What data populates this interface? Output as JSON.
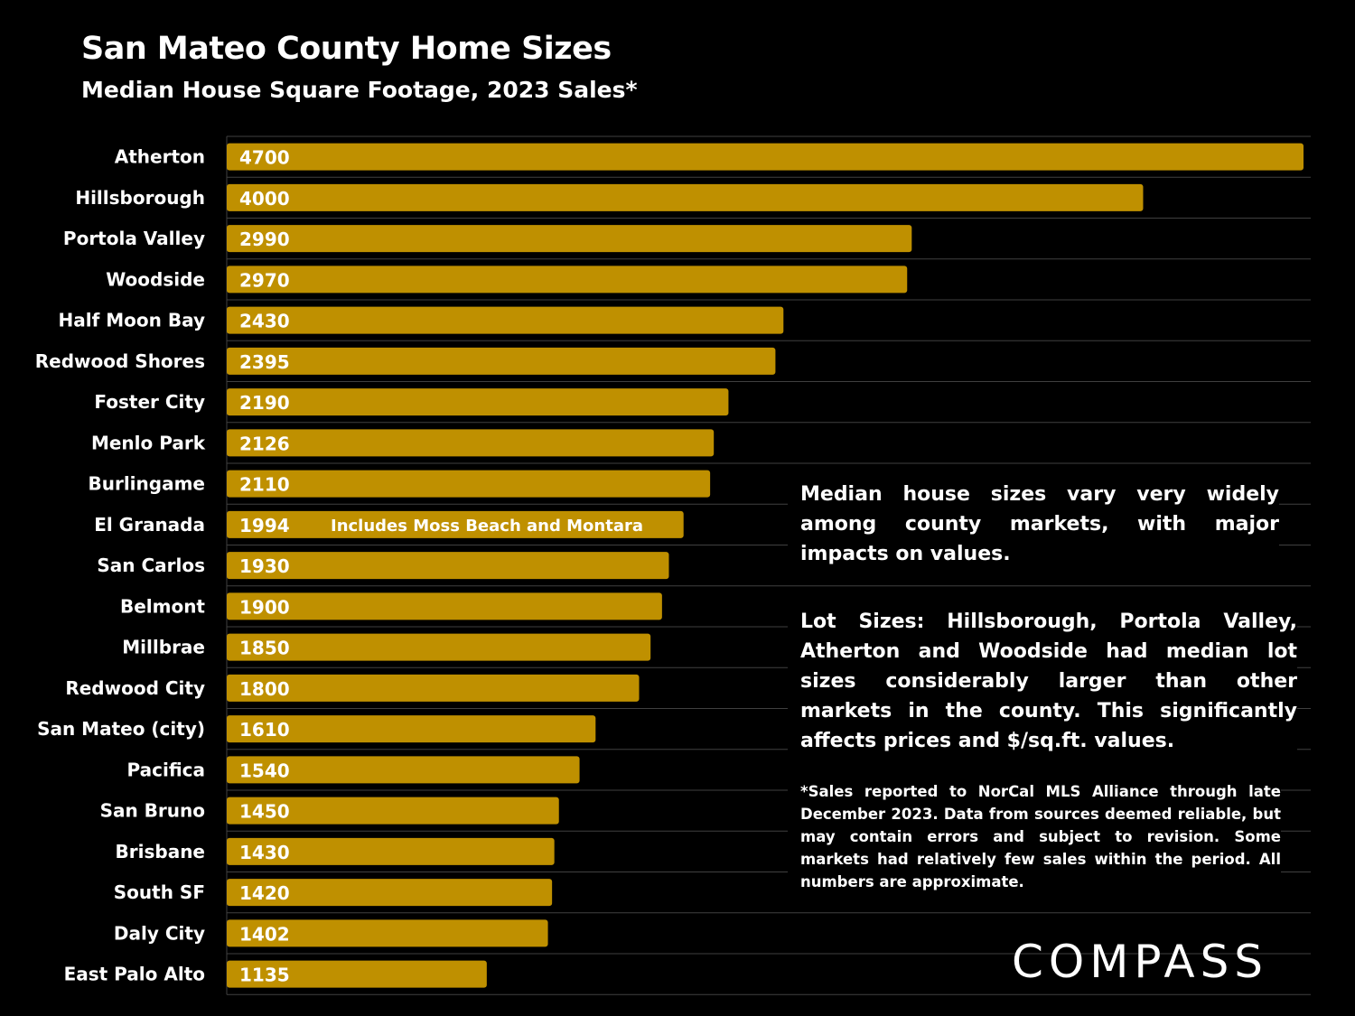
{
  "chart_data": {
    "type": "bar",
    "orientation": "horizontal",
    "title": "San Mateo County Home Sizes",
    "subtitle": "Median House Square Footage, 2023 Sales*",
    "categories": [
      "Atherton",
      "Hillsborough",
      "Portola Valley",
      "Woodside",
      "Half Moon Bay",
      "Redwood Shores",
      "Foster City",
      "Menlo Park",
      "Burlingame",
      "El Granada",
      "San Carlos",
      "Belmont",
      "Millbrae",
      "Redwood City",
      "San Mateo (city)",
      "Pacifica",
      "San Bruno",
      "Brisbane",
      "South SF",
      "Daly City",
      "East Palo Alto"
    ],
    "values": [
      4700,
      4000,
      2990,
      2970,
      2430,
      2395,
      2190,
      2126,
      2110,
      1994,
      1930,
      1900,
      1850,
      1800,
      1610,
      1540,
      1450,
      1430,
      1420,
      1402,
      1135
    ],
    "xlim": [
      0,
      4700
    ],
    "bar_color": "#bf9000",
    "gridline_color": "#404040",
    "annotations": [
      {
        "category": "El Granada",
        "text": "Includes Moss Beach and Montara"
      }
    ]
  },
  "notes": {
    "main": "Median house sizes vary very widely among county markets, with major impacts on values.",
    "lot": "Lot Sizes: Hillsborough, Portola Valley, Atherton and Woodside had median lot sizes considerably larger than other markets in the county. This significantly affects prices and $/sq.ft. values.",
    "footnote": "*Sales reported to NorCal MLS Alliance through late December 2023. Data from sources deemed reliable, but may contain errors and subject to revision. Some markets had relatively few sales within the period. All numbers are approximate."
  },
  "brand": {
    "logo_text": "COMPASS"
  }
}
